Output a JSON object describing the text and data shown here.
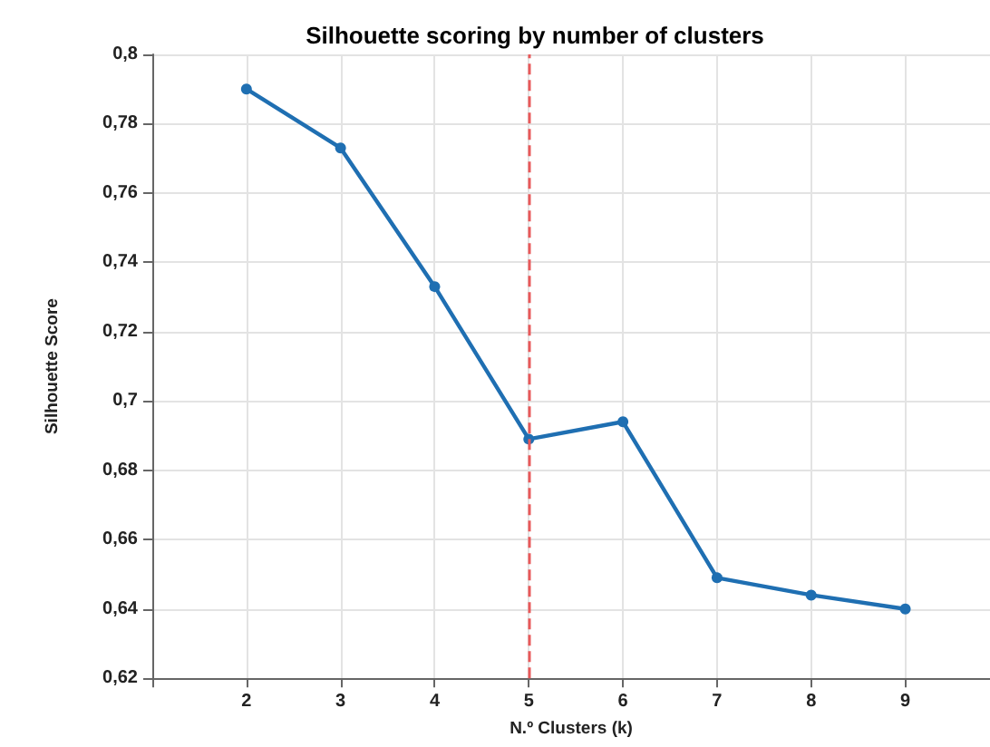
{
  "chart_data": {
    "type": "line",
    "title": "Silhouette scoring by number of clusters",
    "xlabel": "N.º Clusters (k)",
    "ylabel": "Silhouette Score",
    "x": [
      2,
      3,
      4,
      5,
      6,
      7,
      8,
      9
    ],
    "series": [
      {
        "color": "#1f6fb2",
        "values": [
          0.79,
          0.773,
          0.733,
          0.689,
          0.694,
          0.649,
          0.644,
          0.64
        ]
      }
    ],
    "xlim": [
      1,
      9.9
    ],
    "xticks": [
      {
        "value": 1,
        "label": null
      },
      2,
      3,
      4,
      5,
      6,
      7,
      8,
      9
    ],
    "ylim": [
      0.62,
      0.8
    ],
    "yticks": [
      {
        "value": 0.62,
        "label": "0,62"
      },
      {
        "value": 0.64,
        "label": "0,64"
      },
      {
        "value": 0.66,
        "label": "0,66"
      },
      {
        "value": 0.68,
        "label": "0,68"
      },
      {
        "value": 0.7,
        "label": "0,7"
      },
      {
        "value": 0.72,
        "label": "0,72"
      },
      {
        "value": 0.74,
        "label": "0,74"
      },
      {
        "value": 0.76,
        "label": "0,76"
      },
      {
        "value": 0.78,
        "label": "0,78"
      },
      {
        "value": 0.8,
        "label": "0,8"
      }
    ],
    "ref_lines": [
      {
        "axis": "x",
        "value": 5,
        "color": "#e8595a",
        "line_style": "dashed"
      }
    ],
    "grid": true,
    "marker": "circle",
    "line_style": "solid"
  }
}
